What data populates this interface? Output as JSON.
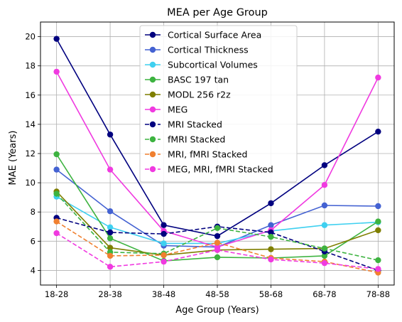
{
  "chart_data": {
    "type": "line",
    "title": "MEA per Age Group",
    "xlabel": "Age Group (Years)",
    "ylabel": "MAE (Years)",
    "categories": [
      "18-28",
      "28-38",
      "38-48",
      "48-58",
      "58-68",
      "68-78",
      "78-88"
    ],
    "ylim": [
      3,
      21
    ],
    "yticks": [
      4,
      6,
      8,
      10,
      12,
      14,
      16,
      18,
      20
    ],
    "grid": true,
    "legend_position": "top-center",
    "series": [
      {
        "name": "Cortical Surface Area",
        "color": "#00007f",
        "dashed": false,
        "values": [
          19.85,
          13.3,
          7.1,
          6.35,
          8.6,
          11.2,
          13.5
        ]
      },
      {
        "name": "Cortical Thickness",
        "color": "#4462d2",
        "dashed": false,
        "values": [
          10.9,
          8.05,
          5.7,
          5.6,
          7.1,
          8.45,
          8.4
        ]
      },
      {
        "name": "Subcortical Volumes",
        "color": "#3fd0f0",
        "dashed": false,
        "values": [
          9.05,
          6.95,
          5.85,
          5.85,
          6.7,
          7.1,
          7.3
        ]
      },
      {
        "name": "BASC 197 tan",
        "color": "#3db340",
        "dashed": false,
        "values": [
          11.95,
          6.2,
          4.65,
          4.9,
          4.85,
          5.0,
          7.35
        ]
      },
      {
        "name": "MODL 256 r2z",
        "color": "#7f7f00",
        "dashed": false,
        "values": [
          9.4,
          5.55,
          5.05,
          5.4,
          5.45,
          5.5,
          6.75
        ]
      },
      {
        "name": "MEG",
        "color": "#f03ae0",
        "dashed": false,
        "values": [
          17.6,
          10.9,
          6.7,
          5.6,
          6.75,
          9.85,
          17.2
        ]
      },
      {
        "name": "MRI Stacked",
        "color": "#00007f",
        "dashed": true,
        "values": [
          7.6,
          6.6,
          6.5,
          7.0,
          6.6,
          5.3,
          4.0
        ]
      },
      {
        "name": "fMRI Stacked",
        "color": "#3db340",
        "dashed": true,
        "values": [
          9.25,
          5.25,
          5.15,
          6.9,
          6.3,
          5.5,
          4.7
        ]
      },
      {
        "name": "MRI, fMRI Stacked",
        "color": "#f08030",
        "dashed": true,
        "values": [
          7.35,
          5.0,
          5.05,
          5.9,
          4.85,
          4.6,
          3.85
        ]
      },
      {
        "name": "MEG, MRI, fMRI Stacked",
        "color": "#f03ae0",
        "dashed": true,
        "values": [
          6.55,
          4.25,
          4.6,
          5.4,
          4.75,
          4.5,
          4.1
        ]
      }
    ]
  }
}
